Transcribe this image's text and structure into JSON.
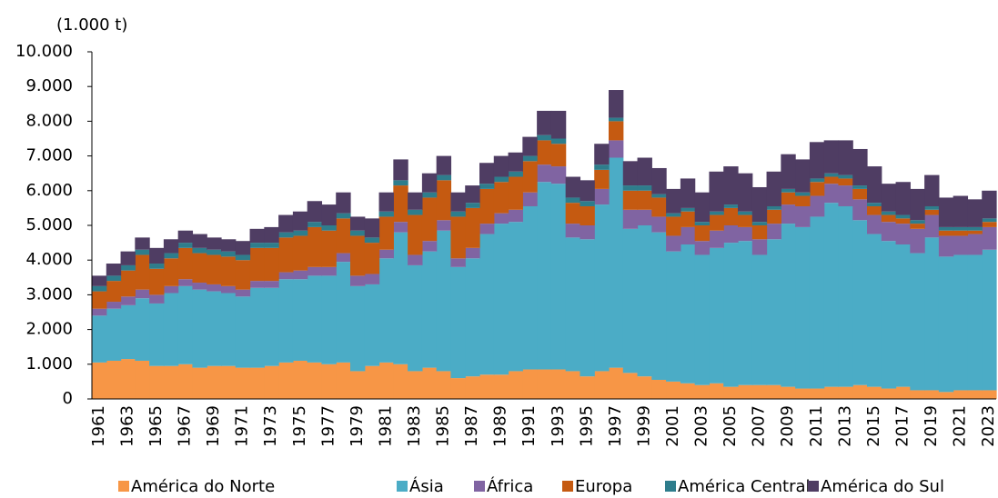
{
  "chart_data": {
    "type": "stacked_area_step",
    "unit": "(1.000 t)",
    "categories": [
      "1961",
      null,
      "1963",
      null,
      "1965",
      null,
      "1967",
      null,
      "1969",
      null,
      "1971",
      null,
      "1973",
      null,
      "1975",
      null,
      "1977",
      null,
      "1979",
      null,
      "1981",
      null,
      "1983",
      null,
      "1985",
      null,
      "1987",
      null,
      "1989",
      null,
      "1991",
      null,
      "1993",
      null,
      "1995",
      null,
      "1997",
      null,
      "1999",
      null,
      "2001",
      null,
      "2003",
      null,
      "2005",
      null,
      "2007",
      null,
      "2009",
      null,
      "2011",
      null,
      "2013",
      null,
      "2015",
      null,
      "2017",
      null,
      "2019",
      null,
      "2021",
      null,
      "2023"
    ],
    "ylim": [
      0,
      10000
    ],
    "yticks": [
      0,
      {
        "value": 1000,
        "label": "1.000"
      },
      {
        "value": 2000,
        "label": "2.000"
      },
      {
        "value": 3000,
        "label": "3.000"
      },
      {
        "value": 4000,
        "label": "4.000"
      },
      {
        "value": 5000,
        "label": "5.000"
      },
      {
        "value": 6000,
        "label": "6.000"
      },
      {
        "value": 7000,
        "label": "7.000"
      },
      {
        "value": 8000,
        "label": "8.000"
      },
      {
        "value": 9000,
        "label": "9.000"
      },
      {
        "value": 10000,
        "label": "10.000"
      }
    ],
    "legend": "bottom",
    "series": [
      {
        "name": "América do Norte",
        "color": "#f79646",
        "values": [
          1050,
          1100,
          1150,
          1100,
          950,
          950,
          1000,
          900,
          950,
          950,
          900,
          900,
          950,
          1050,
          1100,
          1050,
          1000,
          1050,
          800,
          950,
          1050,
          1000,
          800,
          900,
          800,
          600,
          650,
          700,
          700,
          800,
          850,
          850,
          850,
          800,
          650,
          800,
          900,
          750,
          650,
          550,
          500,
          450,
          400,
          450,
          350,
          400,
          400,
          400,
          350,
          300,
          300,
          350,
          350,
          400,
          350,
          300,
          350,
          250,
          250,
          200,
          250,
          250,
          250
        ]
      },
      {
        "name": "Ásia",
        "color": "#4bacc6",
        "values": [
          1350,
          1500,
          1550,
          1800,
          1800,
          2100,
          2250,
          2250,
          2150,
          2100,
          2050,
          2300,
          2250,
          2400,
          2350,
          2500,
          2550,
          2900,
          2450,
          2350,
          3000,
          3800,
          3050,
          3350,
          4050,
          3200,
          3400,
          4050,
          4350,
          4300,
          4700,
          5400,
          5350,
          3850,
          3950,
          4800,
          6050,
          4150,
          4350,
          4250,
          3750,
          4000,
          3750,
          3900,
          4150,
          4150,
          3750,
          4200,
          4700,
          4650,
          4950,
          5300,
          5200,
          4750,
          4400,
          4250,
          4100,
          3950,
          4400,
          3900,
          3900,
          3900,
          4050
        ]
      },
      {
        "name": "África",
        "color": "#8064a2",
        "values": [
          200,
          200,
          250,
          250,
          250,
          200,
          200,
          200,
          200,
          200,
          200,
          200,
          200,
          200,
          250,
          250,
          250,
          250,
          300,
          300,
          250,
          300,
          300,
          300,
          300,
          250,
          300,
          300,
          300,
          350,
          400,
          500,
          500,
          400,
          400,
          450,
          500,
          550,
          450,
          450,
          450,
          500,
          400,
          500,
          500,
          400,
          450,
          450,
          550,
          600,
          600,
          550,
          600,
          600,
          550,
          550,
          600,
          700,
          650,
          600,
          550,
          600,
          650
        ]
      },
      {
        "name": "Europa",
        "color": "#c55a11",
        "values": [
          500,
          600,
          750,
          1000,
          750,
          800,
          900,
          850,
          850,
          850,
          850,
          950,
          950,
          1000,
          1000,
          1150,
          1050,
          1000,
          1150,
          900,
          950,
          1050,
          1150,
          1250,
          1150,
          1200,
          1150,
          1000,
          900,
          950,
          900,
          700,
          650,
          600,
          550,
          550,
          550,
          550,
          550,
          550,
          550,
          450,
          450,
          450,
          500,
          350,
          400,
          400,
          350,
          300,
          400,
          200,
          200,
          300,
          250,
          200,
          150,
          150,
          150,
          150,
          150,
          100,
          150
        ]
      },
      {
        "name": "América Central",
        "color": "#2e7d8c",
        "values": [
          150,
          150,
          150,
          150,
          150,
          150,
          150,
          150,
          150,
          150,
          150,
          150,
          150,
          150,
          150,
          150,
          150,
          150,
          150,
          150,
          150,
          150,
          150,
          150,
          150,
          150,
          150,
          150,
          150,
          150,
          150,
          150,
          150,
          150,
          150,
          150,
          100,
          150,
          150,
          100,
          100,
          100,
          100,
          100,
          100,
          100,
          100,
          100,
          100,
          100,
          100,
          100,
          100,
          100,
          100,
          100,
          100,
          100,
          100,
          100,
          100,
          100,
          100
        ]
      },
      {
        "name": "América do Sul",
        "color": "#4f3d63",
        "values": [
          300,
          350,
          400,
          350,
          450,
          400,
          350,
          400,
          350,
          350,
          400,
          400,
          450,
          500,
          550,
          600,
          600,
          600,
          400,
          550,
          550,
          600,
          500,
          550,
          550,
          550,
          500,
          600,
          600,
          550,
          550,
          700,
          800,
          600,
          600,
          600,
          800,
          700,
          800,
          750,
          700,
          850,
          850,
          1150,
          1100,
          1100,
          1000,
          1000,
          1000,
          950,
          1050,
          950,
          1000,
          1050,
          1050,
          800,
          950,
          900,
          900,
          850,
          900,
          800,
          800
        ]
      }
    ]
  }
}
